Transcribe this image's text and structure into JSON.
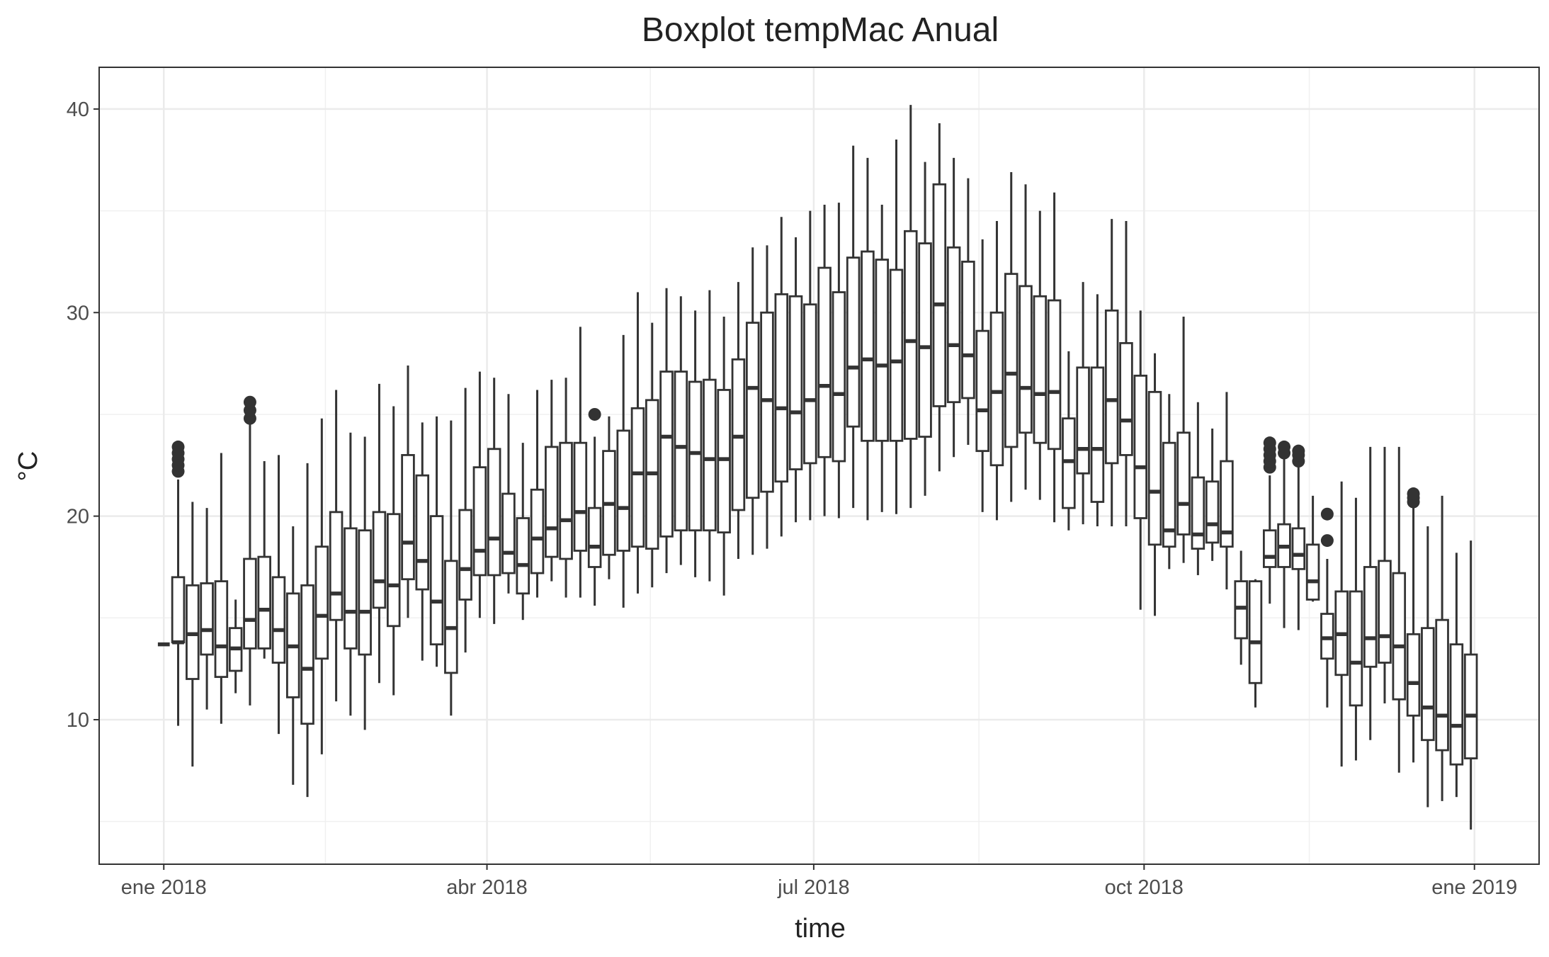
{
  "chart_data": {
    "type": "boxplot",
    "title": "Boxplot tempMac Anual",
    "x_label": "time",
    "y_label": "°C",
    "xlim": [
      -18,
      383
    ],
    "xticks": [
      {
        "value": 0,
        "label": "ene 2018"
      },
      {
        "value": 90,
        "label": "abr 2018"
      },
      {
        "value": 181,
        "label": "jul 2018"
      },
      {
        "value": 273,
        "label": "oct 2018"
      },
      {
        "value": 365,
        "label": "ene 2019"
      }
    ],
    "ylim": [
      2.9,
      42.05
    ],
    "yticks": [
      10,
      20,
      30,
      40
    ],
    "grid": true,
    "color": "#333333",
    "x": [
      0,
      4,
      8,
      12,
      16,
      20,
      24,
      28,
      32,
      36,
      40,
      44,
      48,
      52,
      56,
      60,
      64,
      68,
      72,
      76,
      80,
      84,
      88,
      92,
      96,
      100,
      104,
      108,
      112,
      116,
      120,
      124,
      128,
      132,
      136,
      140,
      144,
      148,
      152,
      156,
      160,
      164,
      168,
      172,
      176,
      180,
      184,
      188,
      192,
      196,
      200,
      204,
      208,
      212,
      216,
      220,
      224,
      228,
      232,
      236,
      240,
      244,
      248,
      252,
      256,
      260,
      264,
      268,
      272,
      276,
      280,
      284,
      288,
      292,
      296,
      300,
      304,
      308,
      312,
      316,
      320,
      324,
      328,
      332,
      336,
      340,
      344,
      348,
      352,
      356,
      360,
      364
    ],
    "low": [
      13.7,
      9.7,
      7.7,
      10.5,
      9.8,
      11.3,
      10.7,
      13.0,
      9.3,
      6.8,
      6.2,
      8.3,
      10.9,
      10.2,
      9.5,
      11.8,
      11.2,
      15.0,
      12.9,
      12.6,
      10.2,
      13.3,
      15.0,
      14.7,
      16.2,
      14.9,
      16.0,
      16.8,
      16.0,
      16.0,
      15.6,
      16.9,
      15.5,
      16.2,
      16.5,
      17.2,
      17.6,
      17.0,
      16.8,
      16.1,
      17.9,
      18.1,
      18.4,
      19.0,
      19.7,
      19.8,
      20.0,
      19.9,
      20.4,
      19.8,
      20.2,
      20.1,
      20.4,
      21.0,
      22.2,
      22.9,
      23.5,
      20.2,
      19.8,
      20.7,
      21.3,
      20.8,
      19.7,
      19.3,
      19.6,
      19.5,
      19.5,
      19.5,
      15.4,
      15.1,
      17.4,
      17.7,
      17.1,
      17.8,
      16.4,
      12.7,
      10.6,
      15.7,
      14.5,
      14.4,
      15.8,
      10.6,
      7.7,
      8.0,
      9.0,
      10.8,
      7.4,
      7.9,
      5.7,
      6.0,
      6.2,
      4.6
    ],
    "q1": [
      13.7,
      13.8,
      12.0,
      13.2,
      12.1,
      12.4,
      13.5,
      13.5,
      12.8,
      11.1,
      9.8,
      13.0,
      14.9,
      13.5,
      13.2,
      15.5,
      14.6,
      16.9,
      16.4,
      13.7,
      12.3,
      15.9,
      17.1,
      17.1,
      17.2,
      16.2,
      17.2,
      18.0,
      17.9,
      18.3,
      17.5,
      18.1,
      18.3,
      18.5,
      18.4,
      19.0,
      19.3,
      19.3,
      19.3,
      19.2,
      20.3,
      20.9,
      21.2,
      21.7,
      22.3,
      22.6,
      22.9,
      22.7,
      24.4,
      23.7,
      23.7,
      23.7,
      23.8,
      23.9,
      25.4,
      25.6,
      25.8,
      23.2,
      22.5,
      23.4,
      24.1,
      23.6,
      23.3,
      20.4,
      22.1,
      20.7,
      22.6,
      23.0,
      19.9,
      18.6,
      18.5,
      19.1,
      18.4,
      18.7,
      18.5,
      14.0,
      11.8,
      17.5,
      17.5,
      17.4,
      15.9,
      13.0,
      12.2,
      10.7,
      12.6,
      12.8,
      11.0,
      10.2,
      9.0,
      8.5,
      7.8,
      8.1
    ],
    "median": [
      13.7,
      13.8,
      14.2,
      14.4,
      13.6,
      13.5,
      14.9,
      15.4,
      14.4,
      13.6,
      12.5,
      15.1,
      16.2,
      15.3,
      15.3,
      16.8,
      16.6,
      18.7,
      17.8,
      15.8,
      14.5,
      17.4,
      18.3,
      18.9,
      18.2,
      17.6,
      18.9,
      19.4,
      19.8,
      20.2,
      18.5,
      20.6,
      20.4,
      22.1,
      22.1,
      23.9,
      23.4,
      23.1,
      22.8,
      22.8,
      23.9,
      26.3,
      25.7,
      25.3,
      25.1,
      25.7,
      26.4,
      26.0,
      27.3,
      27.7,
      27.4,
      27.6,
      28.6,
      28.3,
      30.4,
      28.4,
      27.9,
      25.2,
      26.1,
      27.0,
      26.3,
      26.0,
      26.1,
      22.7,
      23.3,
      23.3,
      25.7,
      24.7,
      22.4,
      21.2,
      19.3,
      20.6,
      19.1,
      19.6,
      19.2,
      15.5,
      13.8,
      18.0,
      18.5,
      18.1,
      16.8,
      14.0,
      14.2,
      12.8,
      14.0,
      14.1,
      13.6,
      11.8,
      10.6,
      10.2,
      9.7,
      10.2
    ],
    "q3": [
      13.7,
      17.0,
      16.6,
      16.7,
      16.8,
      14.5,
      17.9,
      18.0,
      17.0,
      16.2,
      16.6,
      18.5,
      20.2,
      19.4,
      19.3,
      20.2,
      20.1,
      23.0,
      22.0,
      20.0,
      17.8,
      20.3,
      22.4,
      23.3,
      21.1,
      19.9,
      21.3,
      23.4,
      23.6,
      23.6,
      20.4,
      23.2,
      24.2,
      25.3,
      25.7,
      27.1,
      27.1,
      26.6,
      26.7,
      26.2,
      27.7,
      29.5,
      30.0,
      30.9,
      30.8,
      30.4,
      32.2,
      31.0,
      32.7,
      33.0,
      32.6,
      32.1,
      34.0,
      33.4,
      36.3,
      33.2,
      32.5,
      29.1,
      30.0,
      31.9,
      31.3,
      30.8,
      30.6,
      24.8,
      27.3,
      27.3,
      30.1,
      28.5,
      26.9,
      26.1,
      23.6,
      24.1,
      21.9,
      21.7,
      22.7,
      16.8,
      16.8,
      19.3,
      19.6,
      19.4,
      18.6,
      15.2,
      16.3,
      16.3,
      17.5,
      17.8,
      17.2,
      14.2,
      14.5,
      14.9,
      13.7,
      13.2
    ],
    "high": [
      13.7,
      21.8,
      20.7,
      20.4,
      23.1,
      15.9,
      24.6,
      22.7,
      23.0,
      19.5,
      22.6,
      24.8,
      26.2,
      24.1,
      23.9,
      26.5,
      25.4,
      27.4,
      24.6,
      24.9,
      24.7,
      26.3,
      27.1,
      26.8,
      26.0,
      23.6,
      26.2,
      26.7,
      26.8,
      29.3,
      23.9,
      24.9,
      28.9,
      31.0,
      29.5,
      31.2,
      30.8,
      30.1,
      31.1,
      29.8,
      31.5,
      33.2,
      33.3,
      34.7,
      33.7,
      35.0,
      35.3,
      35.4,
      38.2,
      37.6,
      35.3,
      38.5,
      40.2,
      37.4,
      39.3,
      37.6,
      36.6,
      33.6,
      34.5,
      36.9,
      36.3,
      35.0,
      35.9,
      28.1,
      31.5,
      30.9,
      34.6,
      34.5,
      30.1,
      28.0,
      26.0,
      29.8,
      25.6,
      24.3,
      26.1,
      18.3,
      16.9,
      22.0,
      22.9,
      22.4,
      21.0,
      17.9,
      21.7,
      20.9,
      23.4,
      23.4,
      23.4,
      20.4,
      19.5,
      21.0,
      18.2,
      18.8
    ],
    "outliers": [
      {
        "x": 4,
        "values": [
          22.2,
          22.5,
          22.8,
          23.1,
          23.4
        ]
      },
      {
        "x": 24,
        "values": [
          24.8,
          25.2,
          25.6
        ]
      },
      {
        "x": 120,
        "values": [
          25.0
        ]
      },
      {
        "x": 308,
        "values": [
          22.4,
          22.7,
          23.0,
          23.3,
          23.6
        ]
      },
      {
        "x": 312,
        "values": [
          23.1,
          23.4
        ]
      },
      {
        "x": 316,
        "values": [
          22.7,
          23.0,
          23.2
        ]
      },
      {
        "x": 324,
        "values": [
          18.8,
          20.1
        ]
      },
      {
        "x": 348,
        "values": [
          20.7,
          20.9,
          21.1
        ]
      }
    ]
  }
}
